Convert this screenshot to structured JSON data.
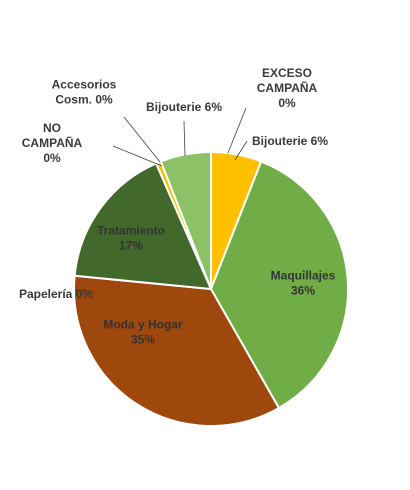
{
  "chart_data": {
    "type": "pie",
    "title": "",
    "slices": [
      {
        "label": "EXCESO CAMPAÑA",
        "value": 0,
        "display": "0%",
        "color": "#ffffff"
      },
      {
        "label": "Bijouterie",
        "value": 6,
        "display": "6%",
        "color": "#ffc000"
      },
      {
        "label": "Maquillajes",
        "value": 36,
        "display": "36%",
        "color": "#70ad47"
      },
      {
        "label": "Moda y Hogar",
        "value": 35,
        "display": "35%",
        "color": "#9e480e"
      },
      {
        "label": "Papelería",
        "value": 0,
        "display": "0%",
        "color": "#636363"
      },
      {
        "label": "Tratamiento",
        "value": 17,
        "display": "17%",
        "color": "#43682b"
      },
      {
        "label": "NO CAMPAÑA",
        "value": 0,
        "display": "0%",
        "color": "#ffffff"
      },
      {
        "label": "Accesorios Cosm.",
        "value": 0.6,
        "display": "0%",
        "color": "#ffc000"
      },
      {
        "label": "Bijouterie",
        "value": 6,
        "display": "6%",
        "color": "#8cc168"
      }
    ],
    "legend": "none"
  }
}
